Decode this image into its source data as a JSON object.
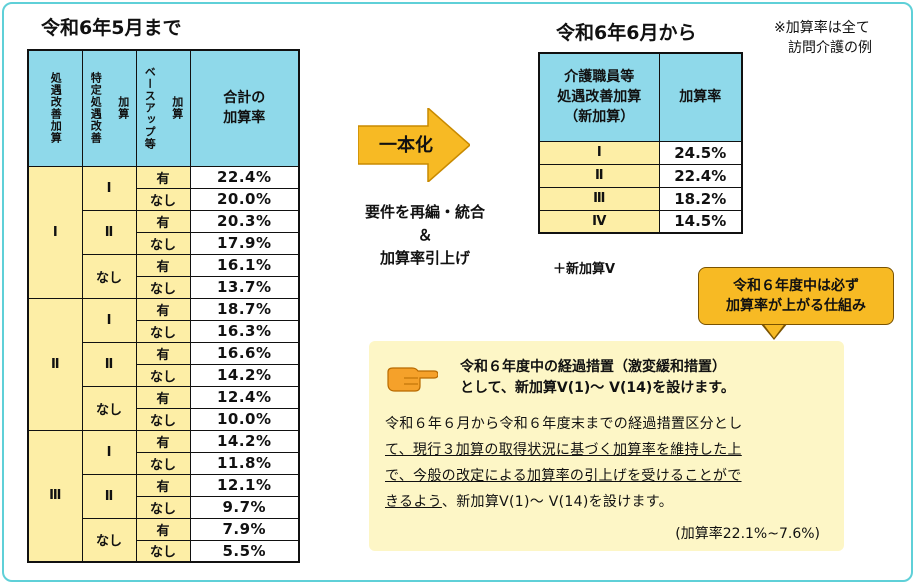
{
  "left_title": "令和6年5月まで",
  "right_title": "令和6年6月から",
  "note_line1": "※加算率は全て",
  "note_line2": "訪問介護の例",
  "left_table": {
    "headers": {
      "shogu": "処遇改善加算",
      "tokutei": [
        "特定処遇改善",
        "加算"
      ],
      "baseup": [
        "ベースアップ等",
        "加算"
      ],
      "total": [
        "合計の",
        "加算率"
      ]
    },
    "groups": [
      {
        "shogu": "Ⅰ",
        "sub": [
          {
            "tokutei": "Ⅰ",
            "rows": [
              {
                "ba": "有",
                "rate": "22.4%"
              },
              {
                "ba": "なし",
                "rate": "20.0%"
              }
            ]
          },
          {
            "tokutei": "Ⅱ",
            "rows": [
              {
                "ba": "有",
                "rate": "20.3%"
              },
              {
                "ba": "なし",
                "rate": "17.9%"
              }
            ]
          },
          {
            "tokutei": "なし",
            "rows": [
              {
                "ba": "有",
                "rate": "16.1%"
              },
              {
                "ba": "なし",
                "rate": "13.7%"
              }
            ]
          }
        ]
      },
      {
        "shogu": "Ⅱ",
        "sub": [
          {
            "tokutei": "Ⅰ",
            "rows": [
              {
                "ba": "有",
                "rate": "18.7%"
              },
              {
                "ba": "なし",
                "rate": "16.3%"
              }
            ]
          },
          {
            "tokutei": "Ⅱ",
            "rows": [
              {
                "ba": "有",
                "rate": "16.6%"
              },
              {
                "ba": "なし",
                "rate": "14.2%"
              }
            ]
          },
          {
            "tokutei": "なし",
            "rows": [
              {
                "ba": "有",
                "rate": "12.4%"
              },
              {
                "ba": "なし",
                "rate": "10.0%"
              }
            ]
          }
        ]
      },
      {
        "shogu": "Ⅲ",
        "sub": [
          {
            "tokutei": "Ⅰ",
            "rows": [
              {
                "ba": "有",
                "rate": "14.2%"
              },
              {
                "ba": "なし",
                "rate": "11.8%"
              }
            ]
          },
          {
            "tokutei": "Ⅱ",
            "rows": [
              {
                "ba": "有",
                "rate": "12.1%"
              },
              {
                "ba": "なし",
                "rate": "9.7%"
              }
            ]
          },
          {
            "tokutei": "なし",
            "rows": [
              {
                "ba": "有",
                "rate": "7.9%"
              },
              {
                "ba": "なし",
                "rate": "5.5%"
              }
            ]
          }
        ]
      }
    ]
  },
  "arrow_label": "一本化",
  "mid_text": [
    "要件を再編・統合",
    "＆",
    "加算率引上げ"
  ],
  "right_table": {
    "header_left": [
      "介護職員等",
      "処遇改善加算",
      "（新加算）"
    ],
    "header_right": "加算率",
    "rows": [
      {
        "level": "Ⅰ",
        "rate": "24.5%"
      },
      {
        "level": "Ⅱ",
        "rate": "22.4%"
      },
      {
        "level": "Ⅲ",
        "rate": "18.2%"
      },
      {
        "level": "Ⅳ",
        "rate": "14.5%"
      }
    ]
  },
  "plus_new": "＋新加算Ⅴ",
  "bubble": [
    "令和６年度中は必ず",
    "加算率が上がる仕組み"
  ],
  "info": {
    "head": [
      "令和６年度中の経過措置（激変緩和措置）",
      "として、新加算Ⅴ(1)～ Ⅴ(14)を設けます。"
    ],
    "body_1": "令和６年６月から令和６年度末までの経過措置区分とし",
    "body_2": "て、現行３加算の取得状況に基づく加算率を維持した上",
    "body_3": "で、今般の改定による加算率の引上げを受けることがで",
    "body_4a": "きるよう",
    "body_4b": "、新加算Ⅴ(1)～ Ⅴ(14)を設けます。",
    "foot": "(加算率22.1%~7.6%)"
  },
  "colors": {
    "frame": "#5fd0d8",
    "header": "#8fd9ea",
    "cell": "#fdeea6",
    "arrow": "#f7ba24",
    "info": "#fdf6c6"
  },
  "icons": {
    "hand": "pointing-hand-icon",
    "arrow": "right-arrow-icon"
  }
}
